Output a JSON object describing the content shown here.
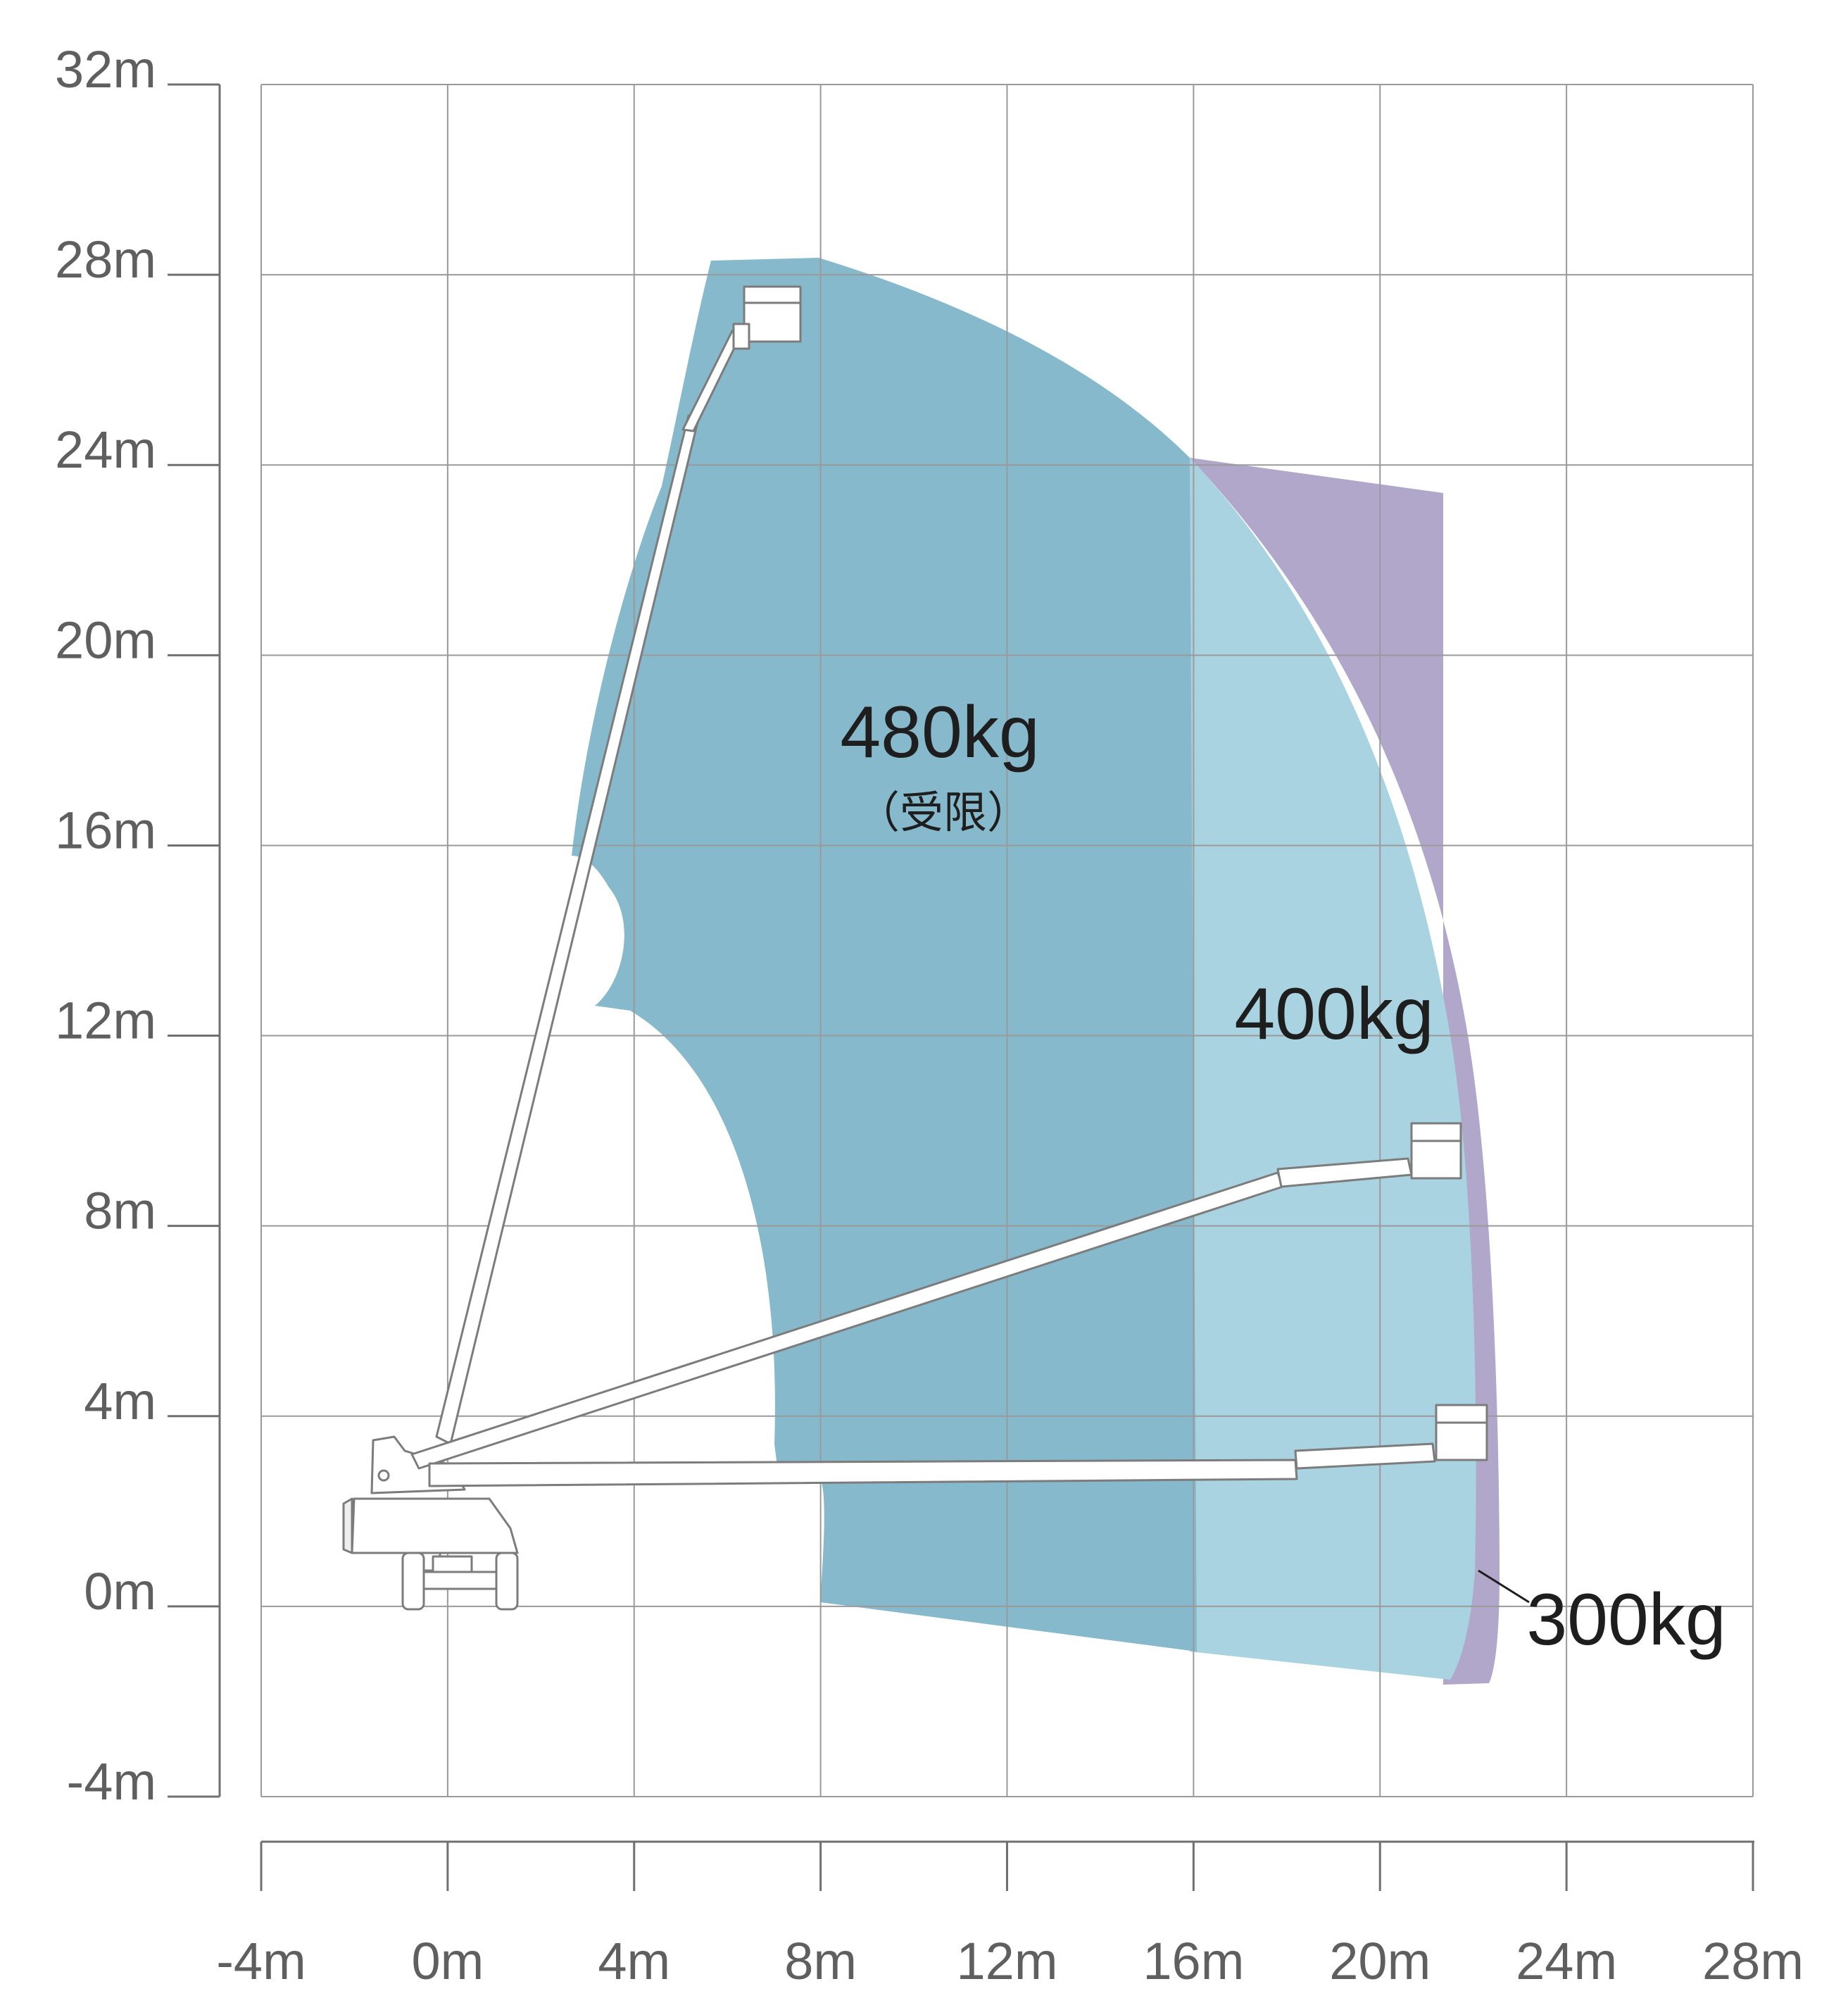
{
  "chart_data": {
    "type": "diagram",
    "title": "",
    "x_axis": {
      "unit": "m",
      "ticks": [
        {
          "value": -4,
          "label": "-4m"
        },
        {
          "value": 0,
          "label": "0m"
        },
        {
          "value": 4,
          "label": "4m"
        },
        {
          "value": 8,
          "label": "8m"
        },
        {
          "value": 12,
          "label": "12m"
        },
        {
          "value": 16,
          "label": "16m"
        },
        {
          "value": 20,
          "label": "20m"
        },
        {
          "value": 24,
          "label": "24m"
        },
        {
          "value": 28,
          "label": "28m"
        }
      ],
      "range": [
        -4,
        28
      ]
    },
    "y_axis": {
      "unit": "m",
      "ticks": [
        {
          "value": 32,
          "label": "32m"
        },
        {
          "value": 28,
          "label": "28m"
        },
        {
          "value": 24,
          "label": "24m"
        },
        {
          "value": 20,
          "label": "20m"
        },
        {
          "value": 16,
          "label": "16m"
        },
        {
          "value": 12,
          "label": "12m"
        },
        {
          "value": 8,
          "label": "8m"
        },
        {
          "value": 4,
          "label": "4m"
        },
        {
          "value": 0,
          "label": "0m"
        },
        {
          "value": -4,
          "label": "-4m"
        }
      ],
      "range": [
        -4,
        32
      ]
    },
    "grid": true,
    "zones": [
      {
        "label": "480kg",
        "sublabel": "（受限）",
        "color": "#86b9cc"
      },
      {
        "label": "400kg",
        "color": "#a9d3e0"
      },
      {
        "label": "300kg",
        "color": "#b1a7cb"
      }
    ],
    "colors": {
      "grid": "#9a9a9a",
      "axis": "#707070",
      "machine_outline": "#7c7c7c"
    }
  }
}
